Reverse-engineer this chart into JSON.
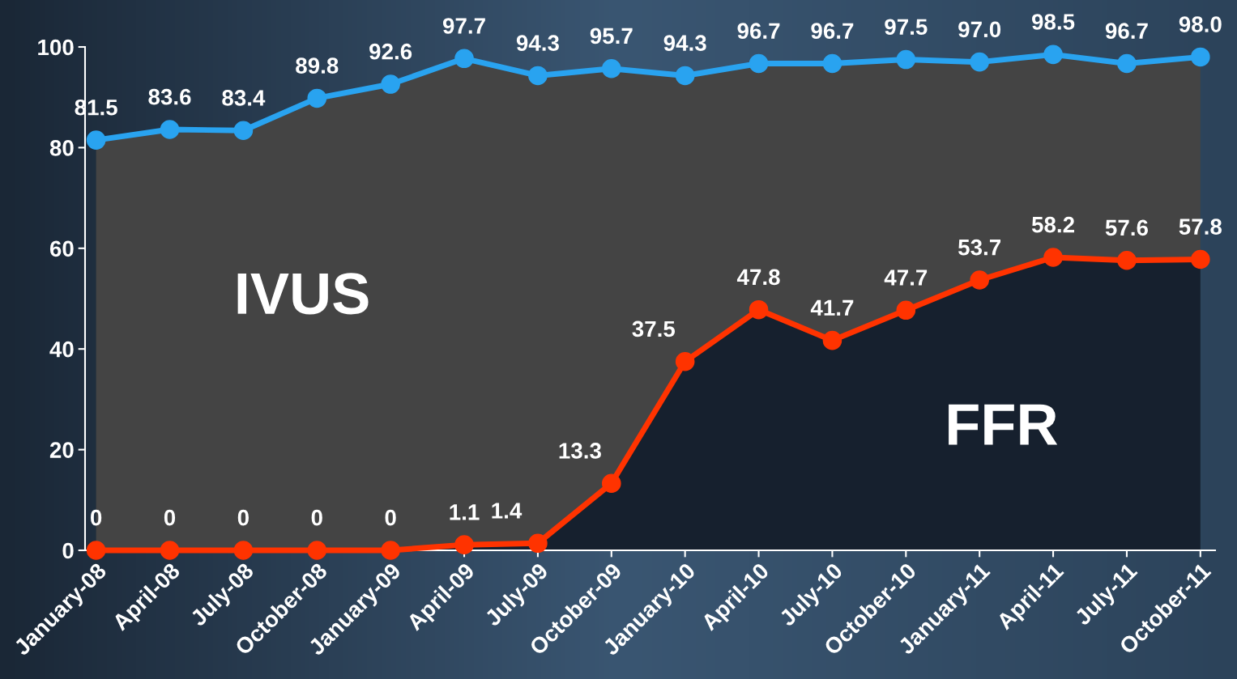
{
  "chart_data": {
    "type": "area",
    "categories": [
      "January-08",
      "April-08",
      "July-08",
      "October-08",
      "January-09",
      "April-09",
      "July-09",
      "October-09",
      "January-10",
      "April-10",
      "July-10",
      "October-10",
      "January-11",
      "April-11",
      "July-11",
      "October-11"
    ],
    "series": [
      {
        "name": "IVUS",
        "color": "#29a3f0",
        "values": [
          81.5,
          83.6,
          83.4,
          89.8,
          92.6,
          97.7,
          94.3,
          95.7,
          94.3,
          96.7,
          96.7,
          97.5,
          97.0,
          98.5,
          96.7,
          98.0
        ],
        "value_labels": [
          "81.5",
          "83.6",
          "83.4",
          "89.8",
          "92.6",
          "97.7",
          "94.3",
          "95.7",
          "94.3",
          "96.7",
          "96.7",
          "97.5",
          "97.0",
          "98.5",
          "96.7",
          "98.0"
        ]
      },
      {
        "name": "FFR",
        "color": "#ff3300",
        "values": [
          0,
          0,
          0,
          0,
          0,
          1.1,
          1.4,
          13.3,
          37.5,
          47.8,
          41.7,
          47.7,
          53.7,
          58.2,
          57.6,
          57.8
        ],
        "value_labels": [
          "0",
          "0",
          "0",
          "0",
          "0",
          "1.1",
          "1.4",
          "13.3",
          "37.5",
          "47.8",
          "41.7",
          "47.7",
          "53.7",
          "58.2",
          "57.6",
          "57.8"
        ]
      }
    ],
    "ylim": [
      0,
      100
    ],
    "yticks": [
      0,
      20,
      40,
      60,
      80,
      100
    ],
    "marker": "circle",
    "grid": false,
    "legend": false
  }
}
